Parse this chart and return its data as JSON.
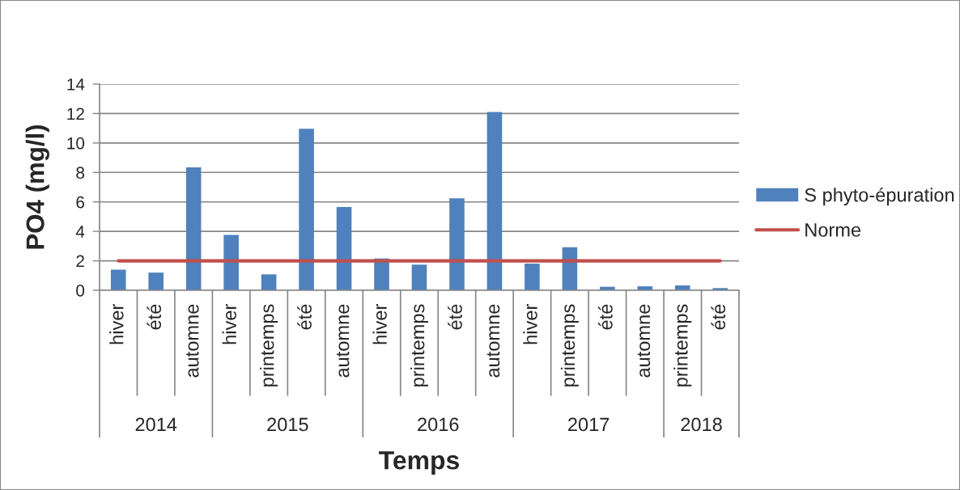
{
  "chart_data": {
    "type": "bar",
    "xlabel": "Temps",
    "ylabel": "PO4 (mg/l)",
    "categories": [
      "hiver",
      "été",
      "automne",
      "hiver",
      "printemps",
      "été",
      "automne",
      "hiver",
      "printemps",
      "été",
      "automne",
      "hiver",
      "printemps",
      "été",
      "automne",
      "printemps",
      "été"
    ],
    "series": [
      {
        "name": "S phyto-épuration",
        "color": "#4f81bd",
        "values": [
          1.4,
          1.2,
          8.35,
          3.76,
          1.08,
          10.96,
          5.66,
          2.16,
          1.74,
          6.25,
          12.11,
          1.81,
          2.93,
          0.24,
          0.27,
          0.33,
          0.15
        ]
      },
      {
        "name": "Norme",
        "type": "line",
        "color": "#c0504d",
        "values": [
          2,
          2,
          2,
          2,
          2,
          2,
          2,
          2,
          2,
          2,
          2,
          2,
          2,
          2,
          2,
          2,
          2
        ]
      }
    ],
    "ylim": [
      0,
      14
    ],
    "yticks": [
      0,
      2,
      4,
      6,
      8,
      10,
      12,
      14
    ],
    "annotations": [
      "2014",
      "2015",
      "2016",
      "2017",
      "2018"
    ],
    "grid": "y",
    "legend": "right"
  }
}
